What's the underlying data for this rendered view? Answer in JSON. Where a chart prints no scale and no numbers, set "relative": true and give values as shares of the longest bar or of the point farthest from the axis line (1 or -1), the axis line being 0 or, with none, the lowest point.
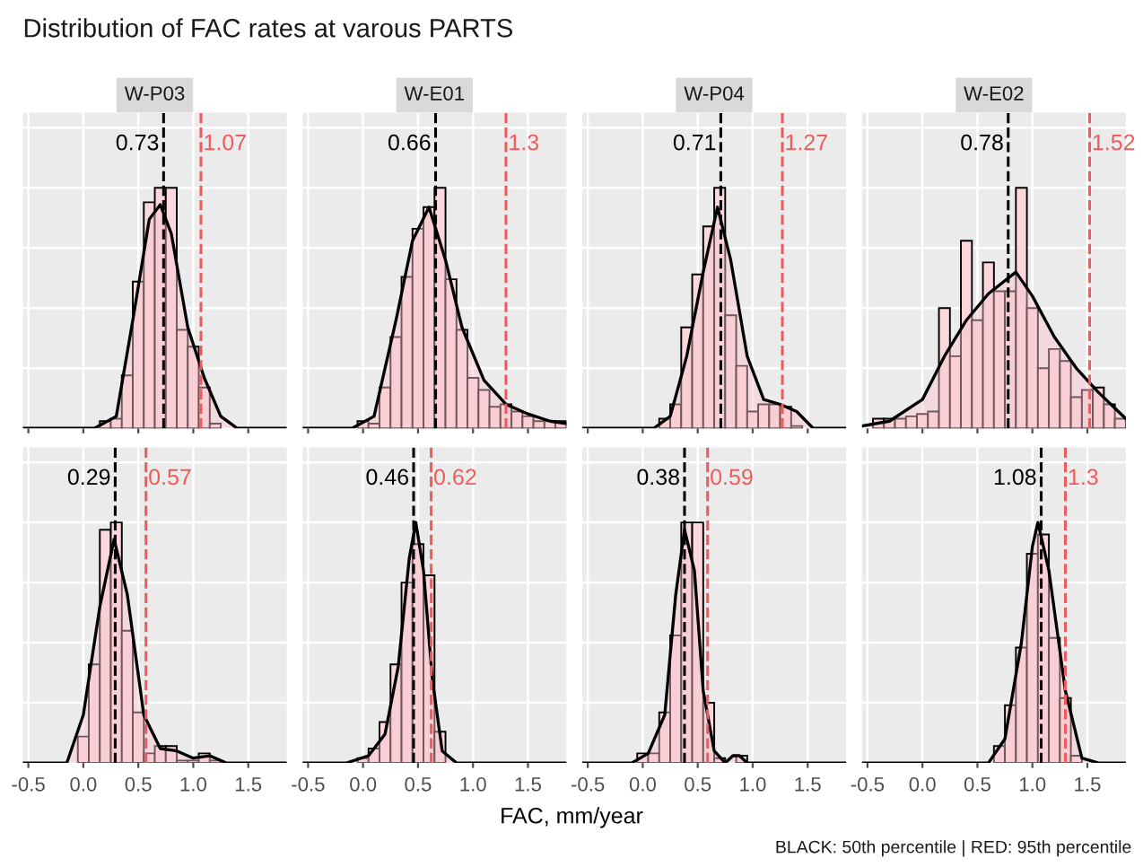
{
  "chart_data": [
    {
      "type": "histogram",
      "title": "W-P03",
      "relative": true,
      "grid": true,
      "tick_labels": false,
      "xlim": [
        -0.55,
        1.85
      ],
      "xticks": [
        {
          "value": -0.5,
          "label": null
        },
        {
          "value": 0,
          "label": null
        },
        {
          "value": 0.5,
          "label": null
        },
        {
          "value": 1,
          "label": null
        },
        {
          "value": 1.5,
          "label": null
        }
      ],
      "annotations": [
        "Distribution of FAC rates at varous PARTS"
      ],
      "ref_lines": [
        {
          "axis": "x",
          "value": 0.73,
          "label": "0.73",
          "color": "#000000",
          "line_style": "dashed"
        },
        {
          "axis": "x",
          "value": 1.07,
          "label": "1.07",
          "color": "#f05a5a",
          "line_style": "dashed"
        }
      ],
      "series": [
        {
          "color": "#fcd7dc",
          "bins": [
            0.15,
            0.25,
            0.35,
            0.45,
            0.55,
            0.65,
            0.75,
            0.85,
            0.95,
            1.05,
            1.15,
            1.25
          ],
          "values": [
            0.03,
            0.04,
            0.22,
            0.61,
            0.94,
            1,
            1,
            0.41,
            0.34,
            0.17,
            0.02
          ]
        },
        {
          "type": "area",
          "color": "#000000",
          "x": [
            -0.55,
            0.1,
            0.3,
            0.45,
            0.6,
            0.7,
            0.8,
            0.95,
            1.1,
            1.25,
            1.4,
            1.85
          ],
          "values": [
            0,
            0,
            0.05,
            0.45,
            0.87,
            0.93,
            0.81,
            0.42,
            0.21,
            0.05,
            0,
            0
          ]
        }
      ]
    },
    {
      "type": "histogram",
      "title": "W-E01",
      "relative": true,
      "grid": true,
      "tick_labels": false,
      "xlim": [
        -0.55,
        1.85
      ],
      "xticks": [
        {
          "value": -0.5,
          "label": null
        },
        {
          "value": 0,
          "label": null
        },
        {
          "value": 0.5,
          "label": null
        },
        {
          "value": 1,
          "label": null
        },
        {
          "value": 1.5,
          "label": null
        }
      ],
      "ref_lines": [
        {
          "axis": "x",
          "value": 0.66,
          "label": "0.66",
          "color": "#000000",
          "line_style": "dashed"
        },
        {
          "axis": "x",
          "value": 1.3,
          "label": "1.3",
          "color": "#f05a5a",
          "line_style": "dashed"
        }
      ],
      "series": [
        {
          "color": "#fcd7dc",
          "bins": [
            -0.05,
            0.05,
            0.15,
            0.25,
            0.35,
            0.45,
            0.55,
            0.65,
            0.75,
            0.85,
            0.95,
            1.05,
            1.15,
            1.25,
            1.35,
            1.45,
            1.55,
            1.65,
            1.75,
            1.85
          ],
          "values": [
            0.03,
            0.02,
            0.17,
            0.38,
            0.63,
            0.83,
            0.92,
            1,
            0.62,
            0.41,
            0.21,
            0.16,
            0.09,
            0.1,
            0.07,
            0.05,
            0.03,
            0.03,
            0.03
          ]
        },
        {
          "type": "area",
          "color": "#000000",
          "x": [
            -0.55,
            -0.1,
            0.1,
            0.3,
            0.45,
            0.6,
            0.75,
            0.9,
            1.1,
            1.3,
            1.5,
            1.7,
            1.85
          ],
          "values": [
            0,
            0,
            0.05,
            0.45,
            0.78,
            0.92,
            0.7,
            0.42,
            0.2,
            0.1,
            0.06,
            0.03,
            0.02
          ]
        }
      ]
    },
    {
      "type": "histogram",
      "title": "W-P04",
      "relative": true,
      "grid": true,
      "tick_labels": false,
      "xlim": [
        -0.55,
        1.85
      ],
      "xticks": [
        {
          "value": -0.5,
          "label": null
        },
        {
          "value": 0,
          "label": null
        },
        {
          "value": 0.5,
          "label": null
        },
        {
          "value": 1,
          "label": null
        },
        {
          "value": 1.5,
          "label": null
        }
      ],
      "ref_lines": [
        {
          "axis": "x",
          "value": 0.71,
          "label": "0.71",
          "color": "#000000",
          "line_style": "dashed"
        },
        {
          "axis": "x",
          "value": 1.27,
          "label": "1.27",
          "color": "#f05a5a",
          "line_style": "dashed"
        }
      ],
      "series": [
        {
          "color": "#fcd7dc",
          "bins": [
            0.15,
            0.25,
            0.35,
            0.45,
            0.55,
            0.65,
            0.75,
            0.85,
            0.95,
            1.05,
            1.15,
            1.25,
            1.35,
            1.45
          ],
          "values": [
            0.04,
            0.1,
            0.42,
            0.64,
            0.84,
            1,
            0.47,
            0.26,
            0.07,
            0.1,
            0.1,
            0.09,
            0.01
          ]
        },
        {
          "type": "area",
          "color": "#000000",
          "x": [
            -0.55,
            0.1,
            0.25,
            0.4,
            0.55,
            0.68,
            0.8,
            0.95,
            1.1,
            1.25,
            1.4,
            1.55,
            1.85
          ],
          "values": [
            0,
            0,
            0.05,
            0.3,
            0.65,
            0.92,
            0.7,
            0.3,
            0.12,
            0.1,
            0.07,
            0,
            0
          ]
        }
      ]
    },
    {
      "type": "histogram",
      "title": "W-E02",
      "relative": true,
      "grid": true,
      "tick_labels": false,
      "xlim": [
        -0.55,
        1.85
      ],
      "xticks": [
        {
          "value": -0.5,
          "label": null
        },
        {
          "value": 0,
          "label": null
        },
        {
          "value": 0.5,
          "label": null
        },
        {
          "value": 1,
          "label": null
        },
        {
          "value": 1.5,
          "label": null
        }
      ],
      "ref_lines": [
        {
          "axis": "x",
          "value": 0.78,
          "label": "0.78",
          "color": "#000000",
          "line_style": "dashed"
        },
        {
          "axis": "x",
          "value": 1.52,
          "label": "1.52",
          "color": "#f05a5a",
          "line_style": "dashed"
        }
      ],
      "series": [
        {
          "color": "#fcd7dc",
          "bins": [
            -0.45,
            -0.35,
            -0.25,
            -0.15,
            -0.05,
            0.05,
            0.15,
            0.25,
            0.35,
            0.45,
            0.55,
            0.65,
            0.75,
            0.85,
            0.95,
            1.05,
            1.15,
            1.25,
            1.35,
            1.45,
            1.55,
            1.65,
            1.75,
            1.85
          ],
          "values": [
            0.04,
            0.04,
            0.04,
            0.05,
            0.06,
            0.07,
            0.5,
            0.3,
            0.78,
            0.45,
            0.69,
            0.57,
            0.57,
            1,
            0.5,
            0.25,
            0.33,
            0.28,
            0.13,
            0.16,
            0.17,
            0.1,
            0.04
          ]
        },
        {
          "type": "area",
          "color": "#000000",
          "x": [
            -0.55,
            -0.3,
            0,
            0.2,
            0.4,
            0.6,
            0.85,
            1.0,
            1.2,
            1.4,
            1.6,
            1.85
          ],
          "values": [
            0.01,
            0.03,
            0.12,
            0.3,
            0.45,
            0.56,
            0.65,
            0.55,
            0.38,
            0.25,
            0.15,
            0.04
          ]
        }
      ]
    },
    {
      "type": "histogram",
      "relative": true,
      "grid": true,
      "tick_labels": "x",
      "xlim": [
        -0.55,
        1.85
      ],
      "xticks": [
        {
          "value": -0.5,
          "label": "-0.5"
        },
        {
          "value": 0,
          "label": "0.0"
        },
        {
          "value": 0.5,
          "label": "0.5"
        },
        {
          "value": 1,
          "label": "1.0"
        },
        {
          "value": 1.5,
          "label": "1.5"
        }
      ],
      "ref_lines": [
        {
          "axis": "x",
          "value": 0.29,
          "label": "0.29",
          "color": "#000000",
          "line_style": "dashed"
        },
        {
          "axis": "x",
          "value": 0.57,
          "label": "0.57",
          "color": "#f05a5a",
          "line_style": "dashed"
        }
      ],
      "series": [
        {
          "color": "#fcd7dc",
          "bins": [
            -0.05,
            0.05,
            0.15,
            0.25,
            0.35,
            0.45,
            0.55,
            0.65,
            0.75,
            0.85,
            0.95,
            1.05,
            1.15,
            1.25
          ],
          "values": [
            0.11,
            0.41,
            0.97,
            1,
            0.55,
            0.21,
            0.04,
            0.07,
            0.07,
            0.01,
            0.01,
            0.04,
            0.01
          ]
        },
        {
          "type": "area",
          "color": "#000000",
          "x": [
            -0.55,
            -0.15,
            0,
            0.15,
            0.28,
            0.4,
            0.55,
            0.7,
            0.85,
            1.0,
            1.15,
            1.3,
            1.85
          ],
          "values": [
            0,
            0,
            0.2,
            0.65,
            0.93,
            0.7,
            0.2,
            0.06,
            0.05,
            0.02,
            0.03,
            0,
            0
          ]
        }
      ]
    },
    {
      "type": "histogram",
      "relative": true,
      "grid": true,
      "tick_labels": "x",
      "xlabel": "FAC, mm/year",
      "xlim": [
        -0.55,
        1.85
      ],
      "xticks": [
        {
          "value": -0.5,
          "label": "-0.5"
        },
        {
          "value": 0,
          "label": "0.0"
        },
        {
          "value": 0.5,
          "label": "0.5"
        },
        {
          "value": 1,
          "label": "1.0"
        },
        {
          "value": 1.5,
          "label": "1.5"
        }
      ],
      "ref_lines": [
        {
          "axis": "x",
          "value": 0.46,
          "label": "0.46",
          "color": "#000000",
          "line_style": "dashed"
        },
        {
          "axis": "x",
          "value": 0.62,
          "label": "0.62",
          "color": "#f05a5a",
          "line_style": "dashed"
        }
      ],
      "series": [
        {
          "color": "#fcd7dc",
          "bins": [
            -0.05,
            0.05,
            0.15,
            0.25,
            0.35,
            0.45,
            0.55,
            0.65,
            0.75
          ],
          "values": [
            0.02,
            0.06,
            0.17,
            0.41,
            0.75,
            0.91,
            0.78,
            0.13
          ]
        },
        {
          "type": "area",
          "color": "#000000",
          "x": [
            -0.55,
            -0.15,
            0.05,
            0.2,
            0.32,
            0.42,
            0.48,
            0.55,
            0.63,
            0.72,
            0.85,
            1.85
          ],
          "values": [
            0,
            0,
            0.03,
            0.12,
            0.4,
            0.85,
            1,
            0.8,
            0.35,
            0.05,
            0,
            0
          ]
        }
      ]
    },
    {
      "type": "histogram",
      "relative": true,
      "grid": true,
      "tick_labels": "x",
      "xlim": [
        -0.55,
        1.85
      ],
      "xticks": [
        {
          "value": -0.5,
          "label": "-0.5"
        },
        {
          "value": 0,
          "label": "0.0"
        },
        {
          "value": 0.5,
          "label": "0.5"
        },
        {
          "value": 1,
          "label": "1.0"
        },
        {
          "value": 1.5,
          "label": "1.5"
        }
      ],
      "ref_lines": [
        {
          "axis": "x",
          "value": 0.38,
          "label": "0.38",
          "color": "#000000",
          "line_style": "dashed"
        },
        {
          "axis": "x",
          "value": 0.59,
          "label": "0.59",
          "color": "#f05a5a",
          "line_style": "dashed"
        }
      ],
      "series": [
        {
          "color": "#fcd7dc",
          "bins": [
            -0.05,
            0.05,
            0.15,
            0.25,
            0.35,
            0.45,
            0.55,
            0.65,
            0.75,
            0.85,
            0.95
          ],
          "values": [
            0.04,
            0.04,
            0.21,
            0.53,
            1,
            1,
            0.25,
            0.02,
            null,
            0.03
          ]
        },
        {
          "type": "area",
          "color": "#000000",
          "x": [
            -0.55,
            -0.1,
            0.05,
            0.2,
            0.3,
            0.38,
            0.47,
            0.55,
            0.65,
            0.75,
            0.82,
            0.88,
            0.95,
            1.85
          ],
          "values": [
            0,
            0,
            0.04,
            0.2,
            0.7,
            0.97,
            0.8,
            0.3,
            0.05,
            0,
            0.03,
            0.03,
            0,
            0
          ]
        }
      ]
    },
    {
      "type": "histogram",
      "relative": true,
      "grid": true,
      "tick_labels": "x",
      "xlim": [
        -0.55,
        1.85
      ],
      "xticks": [
        {
          "value": -0.5,
          "label": "-0.5"
        },
        {
          "value": 0,
          "label": "0.0"
        },
        {
          "value": 0.5,
          "label": "0.5"
        },
        {
          "value": 1,
          "label": "1.0"
        },
        {
          "value": 1.5,
          "label": "1.5"
        }
      ],
      "annotations": [
        "BLACK: 50th percentile | RED: 95th percentile"
      ],
      "ref_lines": [
        {
          "axis": "x",
          "value": 1.08,
          "label": "1.08",
          "color": "#000000",
          "line_style": "dashed"
        },
        {
          "axis": "x",
          "value": 1.3,
          "label": "1.3",
          "color": "#f05a5a",
          "line_style": "dashed"
        }
      ],
      "series": [
        {
          "color": "#fcd7dc",
          "bins": [
            0.65,
            0.75,
            0.85,
            0.95,
            1.05,
            1.15,
            1.25,
            1.35,
            1.45
          ],
          "values": [
            0.07,
            0.24,
            0.48,
            0.87,
            0.95,
            0.52,
            0.27,
            0.03
          ]
        },
        {
          "type": "area",
          "color": "#000000",
          "x": [
            -0.55,
            0.6,
            0.75,
            0.9,
            1.0,
            1.05,
            1.15,
            1.3,
            1.45,
            1.6,
            1.85
          ],
          "values": [
            0,
            0,
            0.1,
            0.5,
            0.9,
            1,
            0.8,
            0.3,
            0.02,
            0,
            0
          ]
        }
      ]
    }
  ]
}
